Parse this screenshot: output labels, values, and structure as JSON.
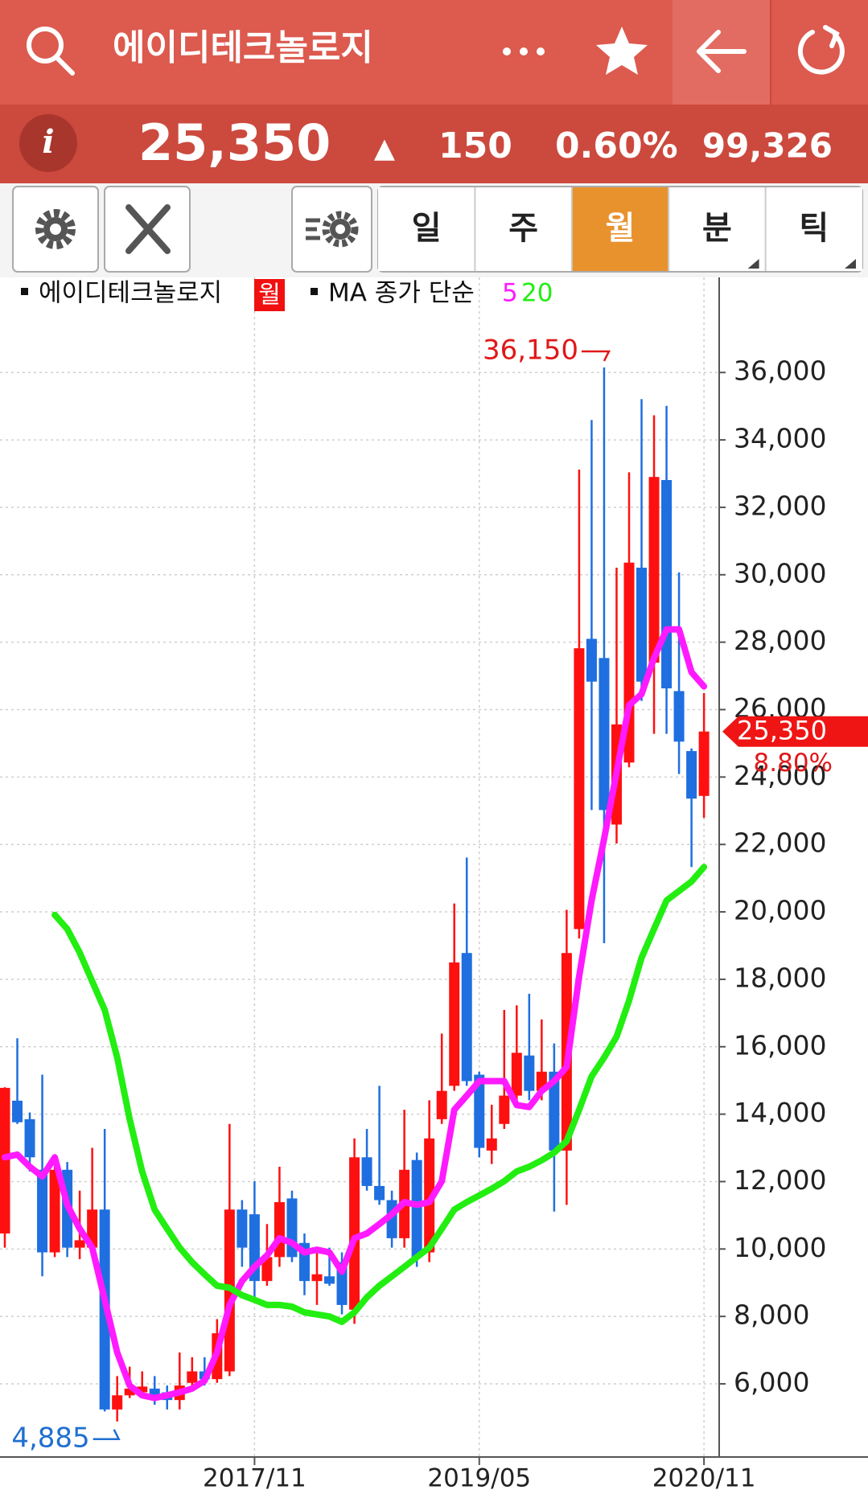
{
  "app_bar": {
    "title": "에이디테크놀로지"
  },
  "quote": {
    "price": "25,350",
    "direction": "▲",
    "change": "150",
    "change_rate": "0.60%",
    "volume": "99,326"
  },
  "period_tabs": [
    "일",
    "주",
    "월",
    "분",
    "틱"
  ],
  "active_tab": "월",
  "chart_data": {
    "type": "candlestick",
    "legend_name": "에이디테크놀로지",
    "period_badge": "월",
    "ma_label": "MA 종가 단순",
    "categories": [
      null,
      null,
      null,
      null,
      null,
      null,
      null,
      null,
      null,
      null,
      null,
      null,
      null,
      null,
      null,
      null,
      null,
      null,
      null,
      null,
      "2017/11",
      null,
      null,
      null,
      null,
      null,
      null,
      null,
      null,
      null,
      null,
      null,
      null,
      null,
      null,
      null,
      null,
      null,
      "2019/05",
      null,
      null,
      null,
      null,
      null,
      null,
      null,
      null,
      null,
      null,
      null,
      null,
      null,
      null,
      null,
      null,
      null,
      "2020/11"
    ],
    "open": [
      10460,
      14400,
      13850,
      12350,
      9900,
      12350,
      10040,
      10040,
      11170,
      5240,
      5660,
      5750,
      5860,
      5750,
      5520,
      6030,
      6370,
      6140,
      6370,
      11170,
      11030,
      9050,
      9760,
      11500,
      10180,
      9050,
      9190,
      9610,
      8200,
      12720,
      11870,
      11450,
      10320,
      12640,
      9900,
      13850,
      14840,
      18780,
      15170,
      12920,
      13710,
      14550,
      15740,
      14690,
      15260,
      12920,
      19490,
      28100,
      27530,
      22590,
      24430,
      30210,
      27390,
      32810,
      26550,
      24770,
      23440
    ],
    "high": [
      14800,
      16250,
      14050,
      15170,
      12720,
      12580,
      11730,
      13000,
      13560,
      6230,
      6510,
      6370,
      6230,
      5950,
      6930,
      6790,
      6790,
      7920,
      13710,
      11450,
      12010,
      10740,
      12440,
      11730,
      10460,
      10040,
      10040,
      9900,
      13280,
      13560,
      14840,
      11730,
      14130,
      12860,
      14410,
      16390,
      20250,
      21610,
      15260,
      14280,
      17090,
      17230,
      17570,
      16810,
      16100,
      20060,
      33120,
      34590,
      36150,
      30210,
      33040,
      35210,
      34730,
      35010,
      30070,
      24850,
      26490
    ],
    "low": [
      10040,
      13710,
      12300,
      9190,
      9760,
      9760,
      9700,
      9980,
      5180,
      4885,
      5580,
      5660,
      5380,
      5240,
      5240,
      5950,
      5950,
      6030,
      6230,
      9470,
      8490,
      8910,
      9470,
      9610,
      8630,
      8340,
      8910,
      8060,
      7780,
      11730,
      11310,
      10040,
      10040,
      9470,
      9610,
      13710,
      14690,
      14840,
      12720,
      12520,
      13560,
      14270,
      14410,
      14410,
      11110,
      11310,
      19210,
      23020,
      19070,
      22030,
      24290,
      26260,
      25280,
      25280,
      24090,
      21330,
      22790
    ],
    "close": [
      14780,
      13760,
      12720,
      9900,
      12350,
      10040,
      10260,
      11170,
      5240,
      5660,
      5860,
      5920,
      5580,
      5520,
      5950,
      6370,
      6140,
      7500,
      11170,
      10040,
      9050,
      9760,
      11390,
      9760,
      9050,
      9250,
      8970,
      8340,
      12720,
      11870,
      11450,
      10320,
      12350,
      9760,
      13280,
      14690,
      18500,
      14980,
      13000,
      13280,
      14550,
      15820,
      14690,
      15260,
      12920,
      18780,
      27820,
      26830,
      23020,
      25560,
      30360,
      26830,
      32900,
      26630,
      25050,
      23360,
      25350
    ],
    "up_color": "#ff1010",
    "down_color": "#1f6fe0",
    "series": [
      {
        "name": "5",
        "color": "#ff1aff",
        "values": [
          12720,
          12800,
          12440,
          12150,
          12720,
          11310,
          10600,
          10040,
          8490,
          6930,
          5950,
          5660,
          5580,
          5660,
          5750,
          5860,
          6090,
          6930,
          8340,
          9050,
          9470,
          9810,
          10320,
          10180,
          9900,
          9980,
          9900,
          9330,
          10320,
          10460,
          10740,
          11030,
          11390,
          11310,
          11390,
          12010,
          14130,
          14550,
          14980,
          14980,
          14980,
          14270,
          14210,
          14690,
          14980,
          15400,
          18080,
          20340,
          22170,
          24150,
          26130,
          26460,
          27530,
          28380,
          28380,
          27110,
          26690
        ]
      },
      {
        "name": "20",
        "color": "#22ee11",
        "values": [
          null,
          null,
          null,
          null,
          19910,
          19490,
          18790,
          17940,
          17090,
          15680,
          13850,
          12300,
          11170,
          10600,
          10040,
          9610,
          9250,
          8910,
          8850,
          8630,
          8490,
          8340,
          8340,
          8290,
          8120,
          8060,
          8000,
          7840,
          8120,
          8570,
          8910,
          9190,
          9470,
          9760,
          10040,
          10600,
          11170,
          11390,
          11590,
          11790,
          12010,
          12300,
          12440,
          12630,
          12860,
          13200,
          14130,
          15120,
          15680,
          16300,
          17370,
          18640,
          19490,
          20340,
          20620,
          20900,
          21330
        ]
      }
    ],
    "ylim": [
      3830,
      38820
    ],
    "yticks": [
      {
        "value": 6000,
        "label": "6,000"
      },
      {
        "value": 8000,
        "label": "8,000"
      },
      {
        "value": 10000,
        "label": "10,000"
      },
      {
        "value": 12000,
        "label": "12,000"
      },
      {
        "value": 14000,
        "label": "14,000"
      },
      {
        "value": 16000,
        "label": "16,000"
      },
      {
        "value": 18000,
        "label": "18,000"
      },
      {
        "value": 20000,
        "label": "20,000"
      },
      {
        "value": 22000,
        "label": "22,000"
      },
      {
        "value": 24000,
        "label": "24,000"
      },
      {
        "value": 26000,
        "label": "26,000"
      },
      {
        "value": 28000,
        "label": "28,000"
      },
      {
        "value": 30000,
        "label": "30,000"
      },
      {
        "value": 32000,
        "label": "32,000"
      },
      {
        "value": 34000,
        "label": "34,000"
      },
      {
        "value": 36000,
        "label": "36,000"
      }
    ],
    "grid": true,
    "high_label": {
      "value": 36150,
      "label": "36,150"
    },
    "low_label": {
      "value": 4885,
      "label": "4,885"
    },
    "last_price": {
      "value": 25350,
      "label": "25,350"
    },
    "last_change_label": "8.80%"
  }
}
